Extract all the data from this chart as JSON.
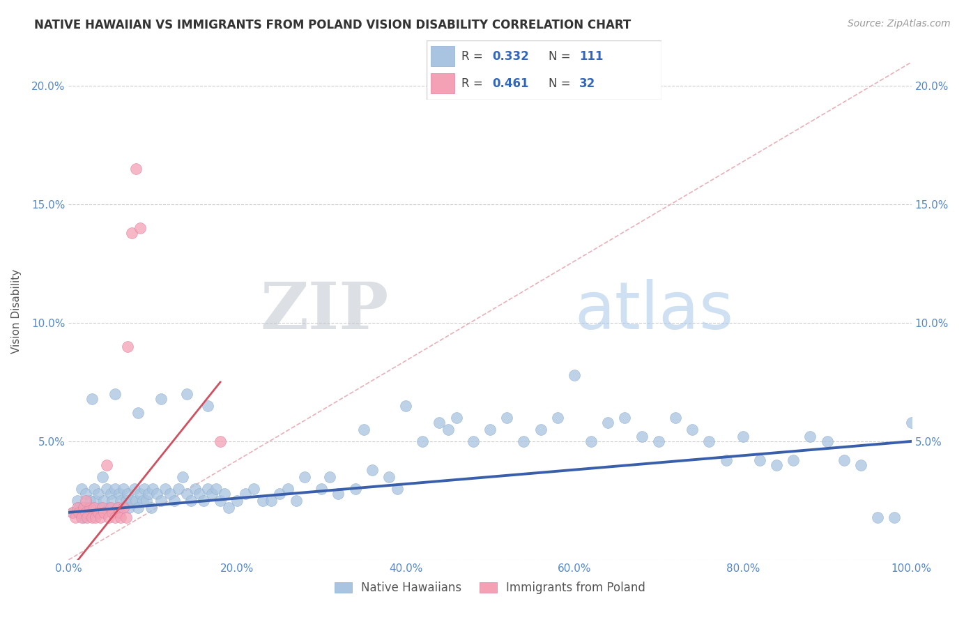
{
  "title": "NATIVE HAWAIIAN VS IMMIGRANTS FROM POLAND VISION DISABILITY CORRELATION CHART",
  "source": "Source: ZipAtlas.com",
  "ylabel": "Vision Disability",
  "xlim": [
    0,
    1.0
  ],
  "ylim": [
    0,
    0.21
  ],
  "xticks": [
    0.0,
    0.2,
    0.4,
    0.6,
    0.8,
    1.0
  ],
  "yticks": [
    0.0,
    0.05,
    0.1,
    0.15,
    0.2
  ],
  "xticklabels": [
    "0.0%",
    "20.0%",
    "40.0%",
    "60.0%",
    "80.0%",
    "100.0%"
  ],
  "yticklabels": [
    "",
    "5.0%",
    "10.0%",
    "15.0%",
    "20.0%"
  ],
  "right_yticklabels": [
    "",
    "5.0%",
    "10.0%",
    "15.0%",
    "20.0%"
  ],
  "legend_R_blue": "0.332",
  "legend_N_blue": "111",
  "legend_R_pink": "0.461",
  "legend_N_pink": "32",
  "blue_color": "#a8c4e0",
  "pink_color": "#f4a0b5",
  "trend_blue_color": "#3a5faa",
  "trend_pink_color": "#d05060",
  "diagonal_color": "#e8b0b8",
  "watermark_zip": "ZIP",
  "watermark_atlas": "atlas",
  "blue_scatter_x": [
    0.005,
    0.01,
    0.012,
    0.015,
    0.018,
    0.02,
    0.022,
    0.025,
    0.028,
    0.03,
    0.032,
    0.035,
    0.038,
    0.04,
    0.042,
    0.045,
    0.048,
    0.05,
    0.052,
    0.055,
    0.058,
    0.06,
    0.062,
    0.065,
    0.068,
    0.07,
    0.072,
    0.075,
    0.078,
    0.08,
    0.082,
    0.085,
    0.088,
    0.09,
    0.092,
    0.095,
    0.098,
    0.1,
    0.105,
    0.11,
    0.115,
    0.12,
    0.125,
    0.13,
    0.135,
    0.14,
    0.145,
    0.15,
    0.155,
    0.16,
    0.165,
    0.17,
    0.175,
    0.18,
    0.185,
    0.19,
    0.2,
    0.21,
    0.22,
    0.23,
    0.24,
    0.25,
    0.26,
    0.27,
    0.28,
    0.3,
    0.31,
    0.32,
    0.34,
    0.35,
    0.36,
    0.38,
    0.39,
    0.4,
    0.42,
    0.44,
    0.45,
    0.46,
    0.48,
    0.5,
    0.52,
    0.54,
    0.56,
    0.58,
    0.6,
    0.62,
    0.64,
    0.66,
    0.68,
    0.7,
    0.72,
    0.74,
    0.76,
    0.78,
    0.8,
    0.82,
    0.84,
    0.86,
    0.88,
    0.9,
    0.92,
    0.94,
    0.96,
    0.98,
    1.0,
    0.028,
    0.055,
    0.082,
    0.11,
    0.14,
    0.165
  ],
  "blue_scatter_y": [
    0.02,
    0.025,
    0.022,
    0.03,
    0.018,
    0.028,
    0.022,
    0.025,
    0.02,
    0.03,
    0.025,
    0.028,
    0.022,
    0.035,
    0.025,
    0.03,
    0.022,
    0.028,
    0.025,
    0.03,
    0.022,
    0.028,
    0.025,
    0.03,
    0.025,
    0.028,
    0.022,
    0.025,
    0.03,
    0.025,
    0.022,
    0.028,
    0.025,
    0.03,
    0.025,
    0.028,
    0.022,
    0.03,
    0.028,
    0.025,
    0.03,
    0.028,
    0.025,
    0.03,
    0.035,
    0.028,
    0.025,
    0.03,
    0.028,
    0.025,
    0.03,
    0.028,
    0.03,
    0.025,
    0.028,
    0.022,
    0.025,
    0.028,
    0.03,
    0.025,
    0.025,
    0.028,
    0.03,
    0.025,
    0.035,
    0.03,
    0.035,
    0.028,
    0.03,
    0.055,
    0.038,
    0.035,
    0.03,
    0.065,
    0.05,
    0.058,
    0.055,
    0.06,
    0.05,
    0.055,
    0.06,
    0.05,
    0.055,
    0.06,
    0.078,
    0.05,
    0.058,
    0.06,
    0.052,
    0.05,
    0.06,
    0.055,
    0.05,
    0.042,
    0.052,
    0.042,
    0.04,
    0.042,
    0.052,
    0.05,
    0.042,
    0.04,
    0.018,
    0.018,
    0.058,
    0.068,
    0.07,
    0.062,
    0.068,
    0.07,
    0.065
  ],
  "pink_scatter_x": [
    0.005,
    0.008,
    0.01,
    0.012,
    0.015,
    0.018,
    0.02,
    0.022,
    0.025,
    0.028,
    0.03,
    0.032,
    0.035,
    0.038,
    0.04,
    0.042,
    0.045,
    0.048,
    0.05,
    0.052,
    0.055,
    0.058,
    0.06,
    0.062,
    0.065,
    0.068,
    0.07,
    0.075,
    0.08,
    0.085,
    0.18,
    0.02
  ],
  "pink_scatter_y": [
    0.02,
    0.018,
    0.022,
    0.02,
    0.018,
    0.022,
    0.02,
    0.018,
    0.022,
    0.018,
    0.022,
    0.018,
    0.02,
    0.018,
    0.022,
    0.02,
    0.04,
    0.018,
    0.022,
    0.02,
    0.018,
    0.022,
    0.02,
    0.018,
    0.022,
    0.018,
    0.09,
    0.138,
    0.165,
    0.14,
    0.05,
    0.025
  ],
  "trend_blue_start_y": 0.02,
  "trend_blue_end_y": 0.05,
  "trend_pink_start_y": -0.005,
  "trend_pink_end_y": 0.075,
  "trend_pink_end_x": 0.18
}
